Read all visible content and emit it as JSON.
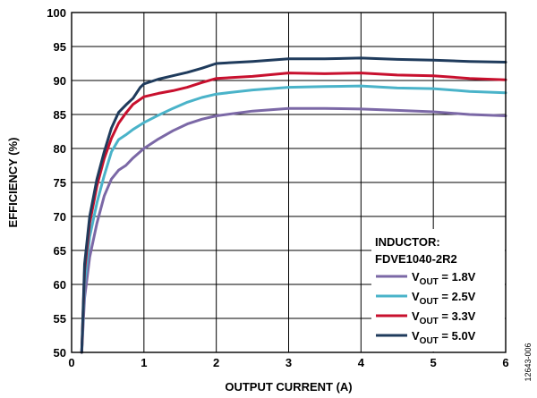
{
  "chart_data": {
    "type": "line",
    "xlabel": "OUTPUT CURRENT (A)",
    "ylabel": "EFFICIENCY (%)",
    "xlim": [
      0,
      6
    ],
    "ylim": [
      50,
      100
    ],
    "x_ticks": [
      "0",
      "1",
      "2",
      "3",
      "4",
      "5",
      "6"
    ],
    "y_ticks": [
      "50",
      "55",
      "60",
      "65",
      "70",
      "75",
      "80",
      "85",
      "90",
      "95",
      "100"
    ],
    "grid": true,
    "legend": {
      "placement": "bottom-right",
      "title_line1": "INDUCTOR:",
      "title_line2": "FDVE1040-2R2",
      "entries": [
        {
          "prefix": "V",
          "sub": "OUT",
          "suffix": " = 1.8V",
          "color": "#7b68a6"
        },
        {
          "prefix": "V",
          "sub": "OUT",
          "suffix": " = 2.5V",
          "color": "#4ab3c9"
        },
        {
          "prefix": "V",
          "sub": "OUT",
          "suffix": " = 3.3V",
          "color": "#c8102e"
        },
        {
          "prefix": "V",
          "sub": "OUT",
          "suffix": " = 5.0V",
          "color": "#1f3b5c"
        }
      ]
    },
    "series": [
      {
        "color": "#7b68a6",
        "points": [
          [
            0.14,
            50
          ],
          [
            0.18,
            58
          ],
          [
            0.25,
            64
          ],
          [
            0.35,
            69
          ],
          [
            0.45,
            73
          ],
          [
            0.55,
            75.5
          ],
          [
            0.65,
            76.8
          ],
          [
            0.75,
            77.5
          ],
          [
            0.85,
            78.6
          ],
          [
            1.0,
            80.0
          ],
          [
            1.2,
            81.4
          ],
          [
            1.4,
            82.6
          ],
          [
            1.6,
            83.6
          ],
          [
            1.8,
            84.3
          ],
          [
            2.0,
            84.8
          ],
          [
            2.5,
            85.5
          ],
          [
            3.0,
            85.9
          ],
          [
            3.5,
            85.9
          ],
          [
            4.0,
            85.8
          ],
          [
            4.5,
            85.6
          ],
          [
            5.0,
            85.4
          ],
          [
            5.5,
            85.0
          ],
          [
            6.0,
            84.8
          ]
        ]
      },
      {
        "color": "#4ab3c9",
        "points": [
          [
            0.14,
            50
          ],
          [
            0.18,
            60
          ],
          [
            0.25,
            67
          ],
          [
            0.35,
            72
          ],
          [
            0.45,
            76
          ],
          [
            0.55,
            79.5
          ],
          [
            0.65,
            81.3
          ],
          [
            0.75,
            82.0
          ],
          [
            0.85,
            82.8
          ],
          [
            1.0,
            83.8
          ],
          [
            1.2,
            84.9
          ],
          [
            1.4,
            85.9
          ],
          [
            1.6,
            86.8
          ],
          [
            1.8,
            87.5
          ],
          [
            2.0,
            88.0
          ],
          [
            2.5,
            88.6
          ],
          [
            3.0,
            89.0
          ],
          [
            3.5,
            89.1
          ],
          [
            4.0,
            89.2
          ],
          [
            4.5,
            88.9
          ],
          [
            5.0,
            88.8
          ],
          [
            5.5,
            88.4
          ],
          [
            6.0,
            88.2
          ]
        ]
      },
      {
        "color": "#c8102e",
        "points": [
          [
            0.14,
            50
          ],
          [
            0.18,
            62
          ],
          [
            0.25,
            69
          ],
          [
            0.35,
            74.5
          ],
          [
            0.45,
            78.5
          ],
          [
            0.55,
            81.5
          ],
          [
            0.65,
            83.7
          ],
          [
            0.75,
            85.2
          ],
          [
            0.85,
            86.5
          ],
          [
            1.0,
            87.6
          ],
          [
            1.2,
            88.1
          ],
          [
            1.4,
            88.5
          ],
          [
            1.6,
            89.0
          ],
          [
            1.8,
            89.7
          ],
          [
            2.0,
            90.3
          ],
          [
            2.5,
            90.6
          ],
          [
            3.0,
            91.1
          ],
          [
            3.5,
            91.0
          ],
          [
            4.0,
            91.1
          ],
          [
            4.5,
            90.8
          ],
          [
            5.0,
            90.7
          ],
          [
            5.5,
            90.3
          ],
          [
            6.0,
            90.1
          ]
        ]
      },
      {
        "color": "#1f3b5c",
        "points": [
          [
            0.14,
            50
          ],
          [
            0.18,
            63
          ],
          [
            0.25,
            70
          ],
          [
            0.35,
            75.5
          ],
          [
            0.45,
            79.5
          ],
          [
            0.55,
            83
          ],
          [
            0.65,
            85.3
          ],
          [
            0.75,
            86.4
          ],
          [
            0.85,
            87.4
          ],
          [
            0.95,
            89.0
          ],
          [
            1.0,
            89.5
          ],
          [
            1.2,
            90.2
          ],
          [
            1.4,
            90.7
          ],
          [
            1.6,
            91.2
          ],
          [
            1.8,
            91.8
          ],
          [
            2.0,
            92.5
          ],
          [
            2.5,
            92.8
          ],
          [
            3.0,
            93.2
          ],
          [
            3.5,
            93.2
          ],
          [
            4.0,
            93.3
          ],
          [
            4.5,
            93.1
          ],
          [
            5.0,
            93.0
          ],
          [
            5.5,
            92.8
          ],
          [
            6.0,
            92.7
          ]
        ]
      }
    ]
  },
  "figure_id": "12643-006"
}
